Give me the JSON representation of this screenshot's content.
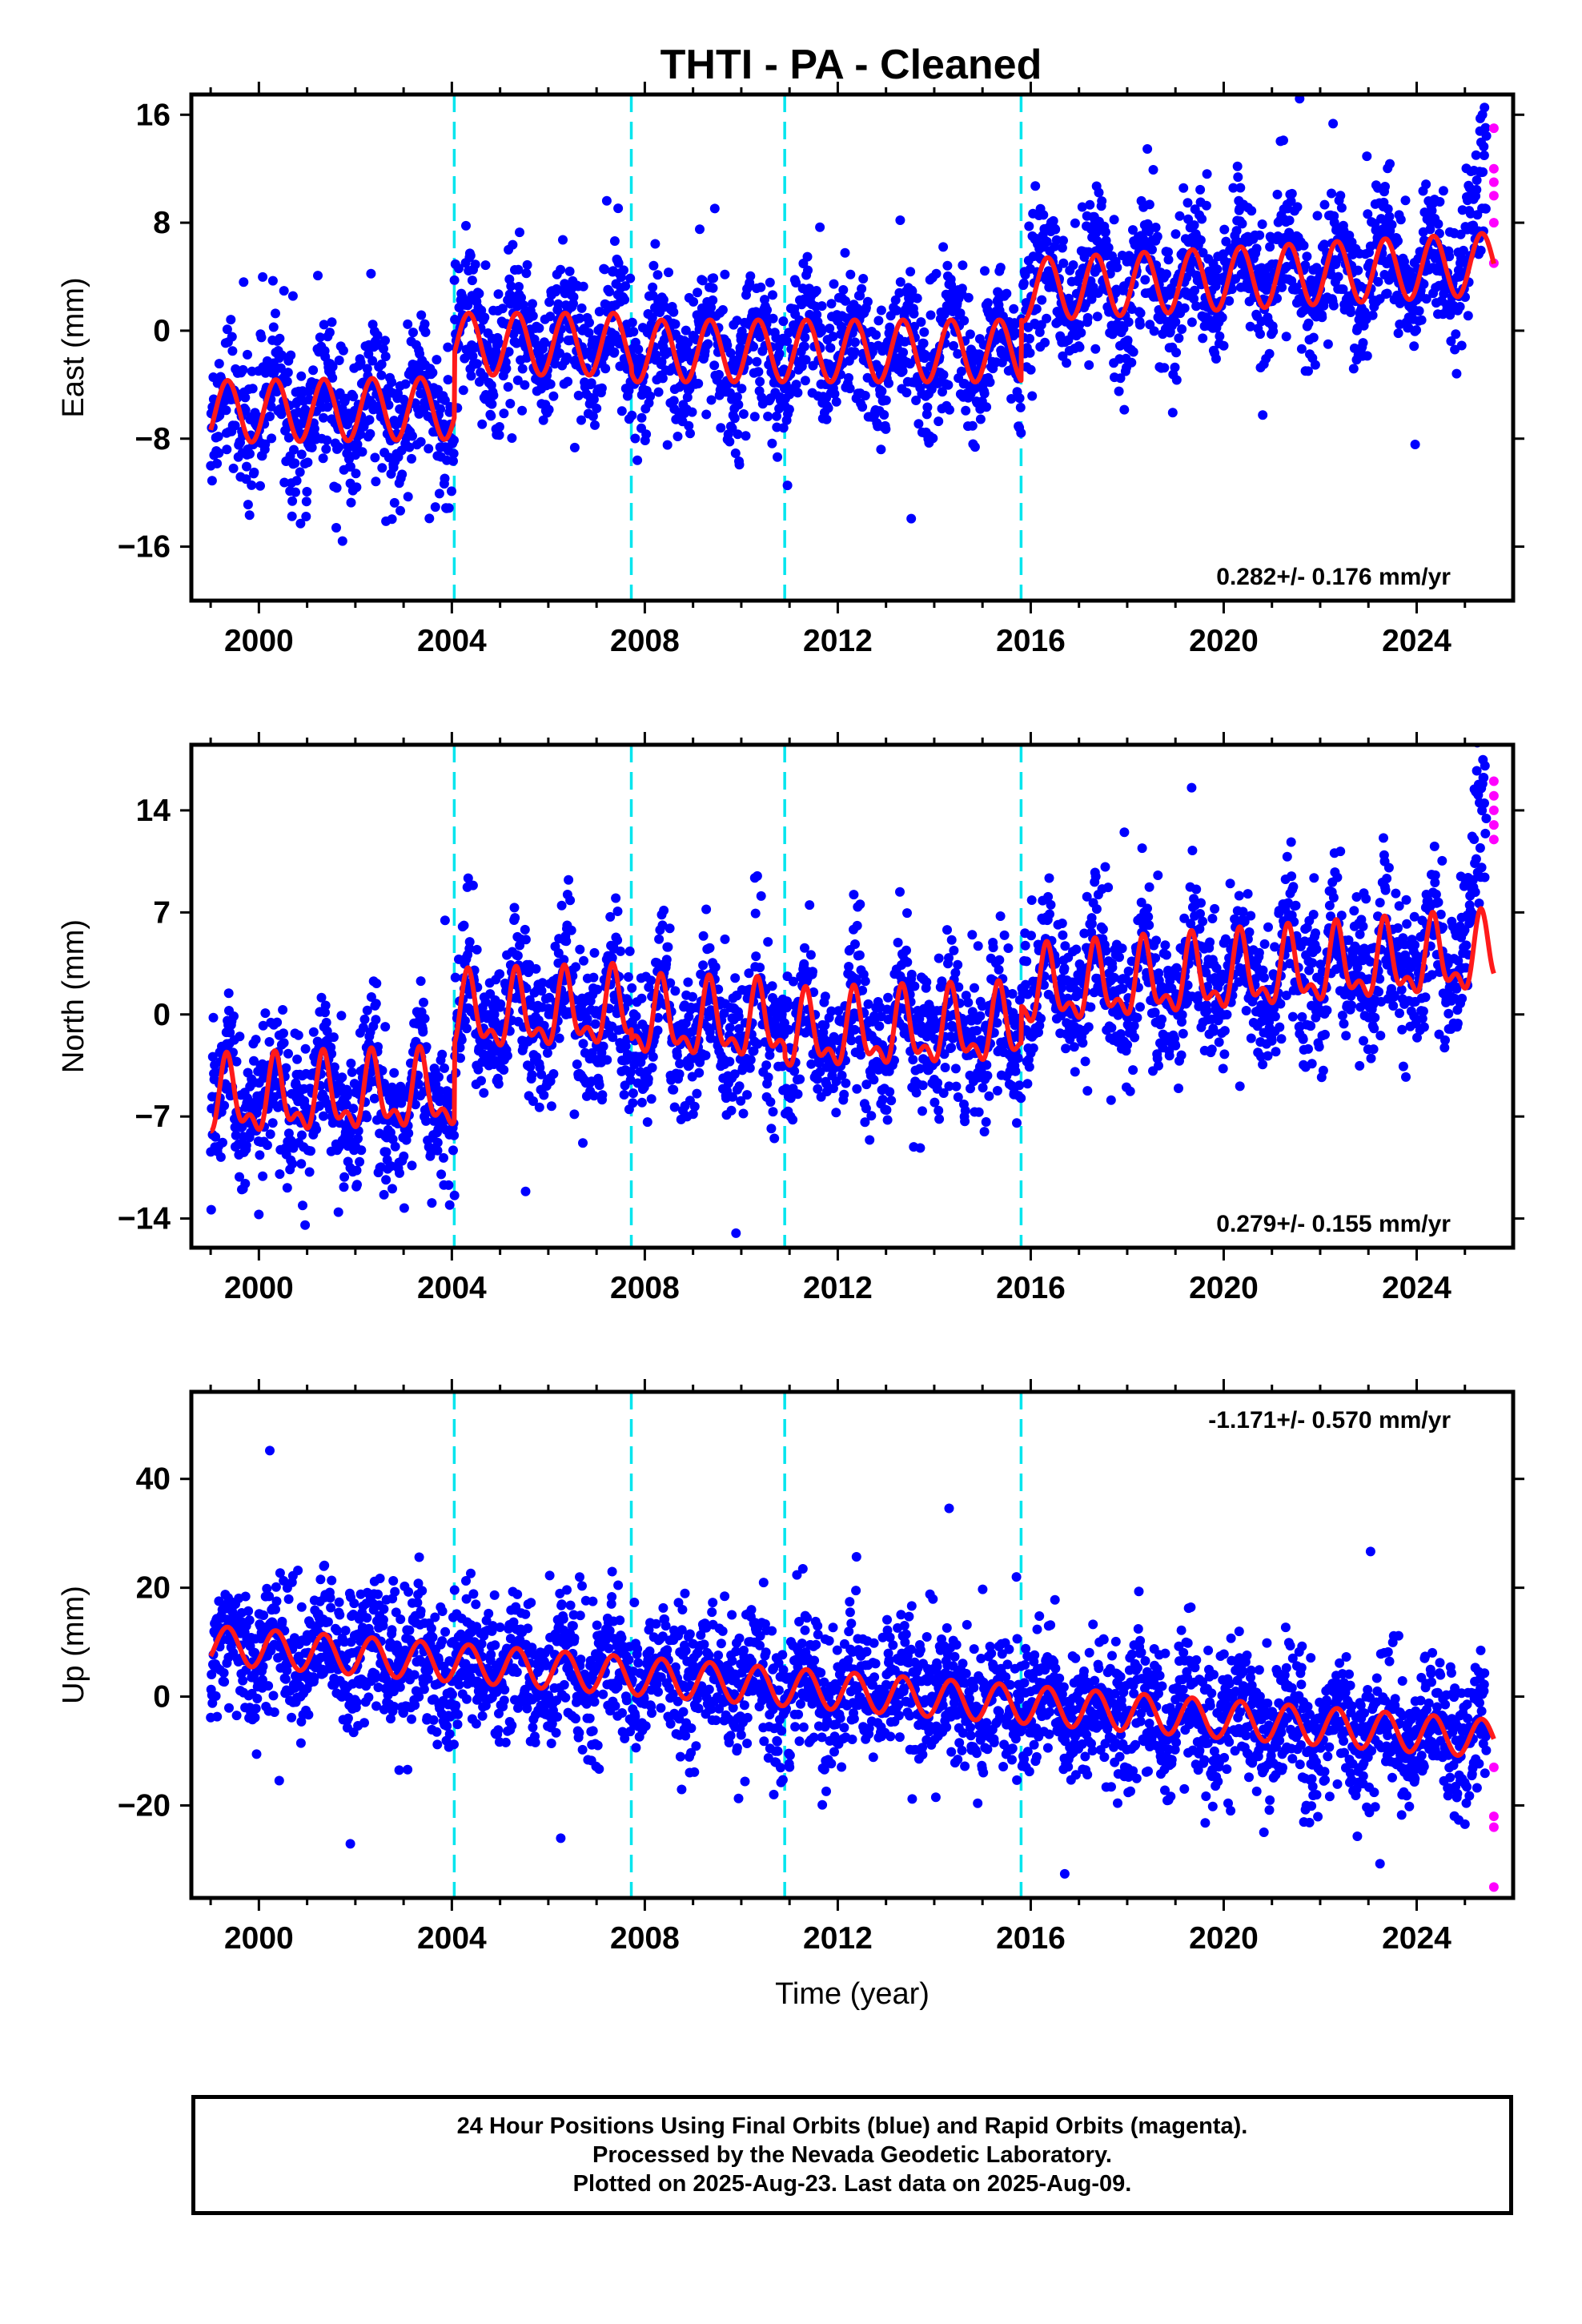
{
  "chart_data": {
    "type": "scatter",
    "title": "THTI  - PA - Cleaned",
    "xlabel": "Time (year)",
    "xlim": [
      1998.6,
      2026.0
    ],
    "x_ticks": [
      2000,
      2004,
      2008,
      2012,
      2016,
      2020,
      2024
    ],
    "x_tick_labels": [
      "2000",
      "2004",
      "2008",
      "2012",
      "2016",
      "2020",
      "2024"
    ],
    "offset_epochs": [
      2004.05,
      2007.72,
      2010.9,
      2015.8
    ],
    "data_start": 1999.0,
    "data_end": 2025.6,
    "rapid_start": 2025.45,
    "series": [
      {
        "name": "Final Orbits",
        "color": "#0000ff"
      },
      {
        "name": "Rapid Orbits",
        "color": "#ff00ff"
      },
      {
        "name": "Model",
        "color": "#ff1a1a"
      }
    ],
    "panels": [
      {
        "component": "East",
        "ylabel": "East (mm)",
        "ylim": [
          -20,
          17.5
        ],
        "y_ticks": [
          16,
          8,
          0,
          -8,
          -16
        ],
        "y_tick_labels": [
          "16",
          "8",
          "0",
          "−8",
          "−16"
        ],
        "rate_text": "0.282+/- 0.176 mm/yr",
        "rate_position": "bottom-right",
        "model_segments": [
          {
            "from": 1999.0,
            "to": 2004.05,
            "level": -6.0,
            "slope": 0.05,
            "amp": 2.3
          },
          {
            "from": 2004.05,
            "to": 2007.72,
            "level": -1.0,
            "slope": 0.0,
            "amp": 2.3
          },
          {
            "from": 2007.72,
            "to": 2010.9,
            "level": -1.5,
            "slope": 0.0,
            "amp": 2.3
          },
          {
            "from": 2010.9,
            "to": 2015.8,
            "level": -1.5,
            "slope": 0.0,
            "amp": 2.3
          },
          {
            "from": 2015.8,
            "to": 2025.6,
            "level": 3.0,
            "slope": 0.2,
            "amp": 2.3
          }
        ],
        "scatter": 2.6,
        "rapid_values": [
          15,
          12,
          11,
          10,
          8,
          5
        ]
      },
      {
        "component": "North",
        "ylabel": "North (mm)",
        "ylim": [
          -16,
          18.5
        ],
        "y_ticks": [
          14,
          7,
          0,
          -7,
          -14
        ],
        "y_tick_labels": [
          "14",
          "7",
          "0",
          "−7",
          "−14"
        ],
        "rate_text": "0.279+/- 0.155 mm/yr",
        "rate_position": "bottom-right",
        "model_segments": [
          {
            "from": 1999.0,
            "to": 2004.05,
            "level": -6.0,
            "slope": 0.1,
            "amp": 2.2
          },
          {
            "from": 2004.05,
            "to": 2007.72,
            "level": -0.2,
            "slope": 0.1,
            "amp": 2.2
          },
          {
            "from": 2007.72,
            "to": 2010.9,
            "level": -0.5,
            "slope": -0.1,
            "amp": 2.2
          },
          {
            "from": 2010.9,
            "to": 2015.8,
            "level": -1.5,
            "slope": 0.1,
            "amp": 2.2
          },
          {
            "from": 2015.8,
            "to": 2025.6,
            "level": 1.5,
            "slope": 0.25,
            "amp": 2.2
          }
        ],
        "scatter": 2.5,
        "rapid_values": [
          16,
          15,
          14,
          13,
          12
        ]
      },
      {
        "component": "Up",
        "ylabel": "Up (mm)",
        "ylim": [
          -37,
          56
        ],
        "y_ticks": [
          40,
          20,
          0,
          -20
        ],
        "y_tick_labels": [
          "40",
          "20",
          "0",
          "−20"
        ],
        "rate_text": "-1.171+/- 0.570 mm/yr",
        "rate_position": "top-right",
        "model_segments": [
          {
            "from": 1999.0,
            "to": 2025.6,
            "level": 9.5,
            "slope": -0.65,
            "amp": 3.5
          }
        ],
        "scatter": 6.5,
        "rapid_values": [
          -13,
          -22,
          -24,
          -35
        ]
      }
    ]
  },
  "footer": {
    "line1": "24 Hour Positions Using Final Orbits (blue) and Rapid Orbits (magenta).",
    "line2": "Processed by the Nevada Geodetic Laboratory.",
    "line3": "Plotted on 2025-Aug-23. Last data on 2025-Aug-09."
  }
}
